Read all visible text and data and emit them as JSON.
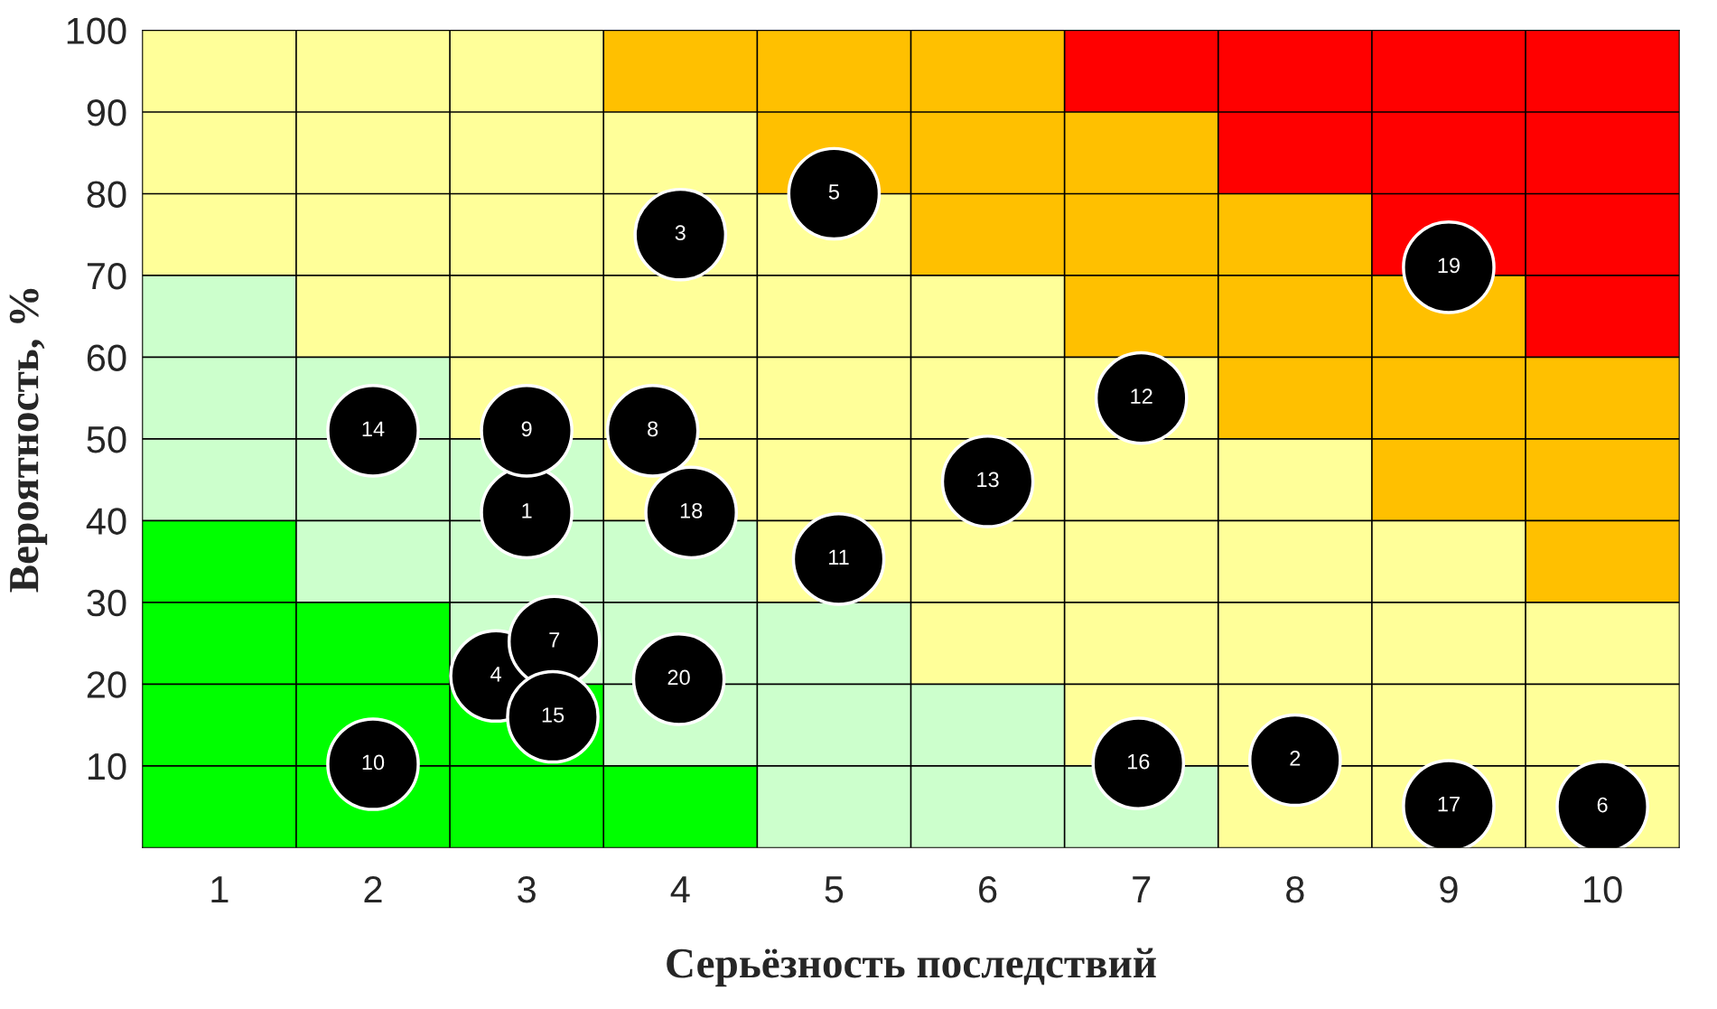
{
  "chart_data": {
    "type": "scatter",
    "xlabel": "Серьёзность последствий",
    "ylabel": "Вероятность, %",
    "xlim": [
      0.5,
      10.5
    ],
    "xticks": [
      1,
      2,
      3,
      4,
      5,
      6,
      7,
      8,
      9,
      10
    ],
    "ylim": [
      0,
      100
    ],
    "yticks": [
      10,
      20,
      30,
      40,
      50,
      60,
      70,
      80,
      90,
      100
    ],
    "grid": true,
    "legend": false,
    "marker": "circle",
    "series": [
      {
        "color": "#000000",
        "x": [
          3,
          8,
          4.0,
          2.8,
          5,
          10,
          3.18,
          3.82,
          3,
          2,
          5.03,
          7,
          6,
          2,
          3.17,
          6.98,
          9,
          4.07,
          9,
          3.99
        ],
        "values": [
          41,
          10.7,
          75,
          21,
          80,
          5,
          25.2,
          51,
          51,
          10.2,
          35.3,
          55,
          44.8,
          51,
          16,
          10.3,
          5.1,
          41,
          71,
          20.6
        ]
      }
    ],
    "annotations": [
      {
        "text": "1",
        "x": 3,
        "y": 41
      },
      {
        "text": "2",
        "x": 8,
        "y": 10.7
      },
      {
        "text": "3",
        "x": 4.0,
        "y": 75
      },
      {
        "text": "4",
        "x": 2.8,
        "y": 21
      },
      {
        "text": "5",
        "x": 5,
        "y": 80
      },
      {
        "text": "6",
        "x": 10,
        "y": 5
      },
      {
        "text": "7",
        "x": 3.18,
        "y": 25.2
      },
      {
        "text": "8",
        "x": 3.82,
        "y": 51
      },
      {
        "text": "9",
        "x": 3,
        "y": 51
      },
      {
        "text": "10",
        "x": 2,
        "y": 10.2
      },
      {
        "text": "11",
        "x": 5.03,
        "y": 35.3
      },
      {
        "text": "12",
        "x": 7,
        "y": 55
      },
      {
        "text": "13",
        "x": 6,
        "y": 44.8
      },
      {
        "text": "14",
        "x": 2,
        "y": 51
      },
      {
        "text": "15",
        "x": 3.17,
        "y": 16
      },
      {
        "text": "16",
        "x": 6.98,
        "y": 10.3
      },
      {
        "text": "17",
        "x": 9,
        "y": 5.1
      },
      {
        "text": "18",
        "x": 4.07,
        "y": 41
      },
      {
        "text": "19",
        "x": 9,
        "y": 71
      },
      {
        "text": "20",
        "x": 3.99,
        "y": 20.6
      }
    ]
  }
}
